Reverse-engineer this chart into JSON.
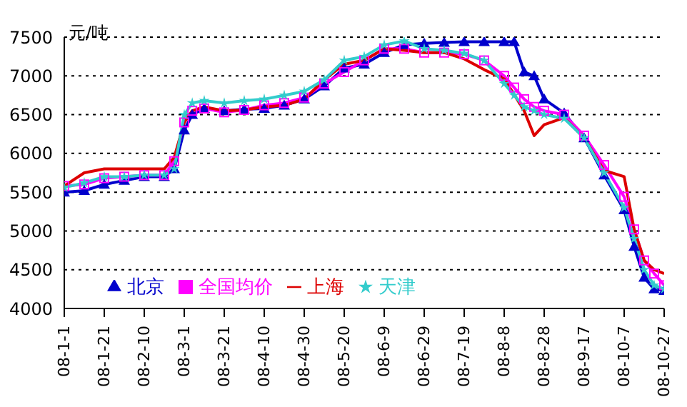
{
  "chart_data": {
    "type": "line",
    "ylabel": "元/吨",
    "x": [
      "--01-01",
      "--01-11",
      "--01-21",
      "--01-31",
      "--02-10",
      "--02-20",
      "--02-25",
      "--03-01",
      "--03-05",
      "--03-11",
      "--03-21",
      "--03-31",
      "--04-10",
      "--04-20",
      "--04-30",
      "--05-10",
      "--05-20",
      "--05-30",
      "--06-09",
      "--06-19",
      "--06-29",
      "--07-09",
      "--07-19",
      "--07-29",
      "--08-08",
      "--08-13",
      "--08-18",
      "--08-23",
      "--08-28",
      "--09-07",
      "--09-17",
      "--09-27",
      "--10-07",
      "--10-12",
      "--10-17",
      "--10-22",
      "--10-27"
    ],
    "series": [
      {
        "name": "北京",
        "color": "#0000cc",
        "marker": "triangle",
        "values": [
          5500,
          5520,
          5600,
          5650,
          5700,
          5700,
          5800,
          6300,
          6500,
          6580,
          6550,
          6570,
          6580,
          6620,
          6700,
          6870,
          7100,
          7150,
          7300,
          7400,
          7420,
          7430,
          7440,
          7440,
          7440,
          7440,
          7050,
          7000,
          6700,
          6520,
          6200,
          5720,
          5270,
          4800,
          4400,
          4250,
          4230
        ]
      },
      {
        "name": "全国均价",
        "color": "#ff00ff",
        "marker": "square",
        "values": [
          5580,
          5600,
          5680,
          5700,
          5720,
          5720,
          5900,
          6400,
          6550,
          6580,
          6530,
          6560,
          6620,
          6650,
          6720,
          6900,
          7050,
          7200,
          7350,
          7350,
          7300,
          7300,
          7280,
          7200,
          7000,
          6850,
          6700,
          6600,
          6550,
          6500,
          6230,
          5850,
          5440,
          5020,
          4620,
          4450,
          4300
        ]
      },
      {
        "name": "上海",
        "color": "#dd0000",
        "marker": "none",
        "values": [
          5580,
          5750,
          5800,
          5800,
          5800,
          5800,
          5950,
          6400,
          6550,
          6600,
          6550,
          6560,
          6600,
          6620,
          6700,
          6950,
          7150,
          7200,
          7350,
          7330,
          7300,
          7300,
          7220,
          7080,
          6960,
          6760,
          6550,
          6230,
          6370,
          6460,
          6200,
          5780,
          5700,
          5020,
          4620,
          4500,
          4450
        ]
      },
      {
        "name": "天津",
        "color": "#33cccc",
        "marker": "star",
        "values": [
          5560,
          5620,
          5700,
          5700,
          5720,
          5720,
          5800,
          6500,
          6650,
          6680,
          6650,
          6680,
          6700,
          6750,
          6800,
          6950,
          7200,
          7250,
          7400,
          7450,
          7350,
          7330,
          7290,
          7200,
          6900,
          6750,
          6600,
          6550,
          6500,
          6450,
          6200,
          5750,
          5300,
          4900,
          4500,
          4300,
          4250
        ]
      }
    ],
    "xlim": [
      "--01-01",
      "--10-27"
    ],
    "xticks": [
      {
        "value": "--01-01",
        "label": "08-1-1"
      },
      {
        "value": "--01-21",
        "label": "08-1-21"
      },
      {
        "value": "--02-10",
        "label": "08-2-10"
      },
      {
        "value": "--03-01",
        "label": "08-3-1"
      },
      {
        "value": "--03-21",
        "label": "08-3-21"
      },
      {
        "value": "--04-10",
        "label": "08-4-10"
      },
      {
        "value": "--04-30",
        "label": "08-4-30"
      },
      {
        "value": "--05-20",
        "label": "08-5-20"
      },
      {
        "value": "--06-09",
        "label": "08-6-9"
      },
      {
        "value": "--06-29",
        "label": "08-6-29"
      },
      {
        "value": "--07-19",
        "label": "08-7-19"
      },
      {
        "value": "--08-08",
        "label": "08-8-8"
      },
      {
        "value": "--08-28",
        "label": "08-8-28"
      },
      {
        "value": "--09-17",
        "label": "08-9-17"
      },
      {
        "value": "--10-07",
        "label": "08-10-7"
      },
      {
        "value": "--10-27",
        "label": "08-10-27"
      }
    ],
    "ylim": [
      4000,
      7500
    ],
    "yticks": [
      4000,
      4500,
      5000,
      5500,
      6000,
      6500,
      7000,
      7500
    ],
    "grid": "y",
    "legend": "bottom",
    "line_style": "solid"
  }
}
